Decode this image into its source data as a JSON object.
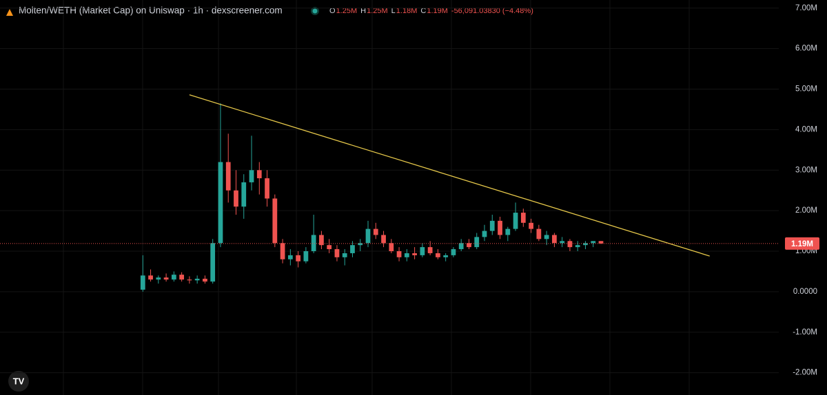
{
  "chart_data": {
    "type": "candlestick",
    "title": "Molten/WETH (Market Cap) on Uniswap · 1h · dexscreener.com",
    "ohlc_legend": [
      {
        "key": "O",
        "value": "1.25M"
      },
      {
        "key": "H",
        "value": "1.25M"
      },
      {
        "key": "L",
        "value": "1.18M"
      },
      {
        "key": "C",
        "value": "1.19M"
      }
    ],
    "change": "-56,091.03830 (−4.48%)",
    "up_color": "#26a69a",
    "down_color": "#ef5350",
    "open": [
      50000,
      400000,
      300000,
      350000,
      300000,
      420000,
      300000,
      280000,
      320000,
      250000,
      1200000,
      3200000,
      2500000,
      2100000,
      2700000,
      3000000,
      2800000,
      2300000,
      1200000,
      800000,
      900000,
      750000,
      1000000,
      1400000,
      1150000,
      1050000,
      850000,
      950000,
      1150000,
      1200000,
      1550000,
      1400000,
      1200000,
      1000000,
      850000,
      950000,
      900000,
      1100000,
      950000,
      850000,
      900000,
      1050000,
      1200000,
      1100000,
      1350000,
      1500000,
      1750000,
      1400000,
      1550000,
      1950000,
      1700000,
      1550000,
      1300000,
      1400000,
      1200000,
      1250000,
      1100000,
      1150000,
      1200000,
      1250000
    ],
    "high": [
      900000,
      550000,
      400000,
      450000,
      500000,
      480000,
      380000,
      400000,
      400000,
      1300000,
      4650000,
      3900000,
      3000000,
      2900000,
      3850000,
      3200000,
      3000000,
      2400000,
      1300000,
      1050000,
      1000000,
      1100000,
      1900000,
      1500000,
      1300000,
      1150000,
      1050000,
      1250000,
      1300000,
      1750000,
      1700000,
      1500000,
      1300000,
      1100000,
      1050000,
      1100000,
      1200000,
      1250000,
      1050000,
      950000,
      1100000,
      1300000,
      1300000,
      1450000,
      1650000,
      1900000,
      1850000,
      1600000,
      2200000,
      2050000,
      1800000,
      1650000,
      1500000,
      1450000,
      1350000,
      1300000,
      1250000,
      1250000,
      1250000,
      1250000
    ],
    "low": [
      0,
      250000,
      200000,
      250000,
      250000,
      250000,
      200000,
      200000,
      200000,
      200000,
      1100000,
      2200000,
      1900000,
      1800000,
      2500000,
      2400000,
      2100000,
      1100000,
      700000,
      650000,
      600000,
      700000,
      950000,
      1050000,
      950000,
      750000,
      650000,
      850000,
      1000000,
      1100000,
      1300000,
      1100000,
      950000,
      750000,
      750000,
      800000,
      850000,
      900000,
      800000,
      750000,
      850000,
      1000000,
      1050000,
      1050000,
      1250000,
      1400000,
      1300000,
      1250000,
      1500000,
      1600000,
      1450000,
      1250000,
      1150000,
      1100000,
      1100000,
      1000000,
      1000000,
      1050000,
      1100000,
      1180000
    ],
    "close": [
      400000,
      300000,
      350000,
      300000,
      420000,
      300000,
      280000,
      320000,
      250000,
      1200000,
      3200000,
      2500000,
      2100000,
      2700000,
      3000000,
      2800000,
      2300000,
      1200000,
      800000,
      900000,
      750000,
      1000000,
      1400000,
      1150000,
      1050000,
      850000,
      950000,
      1150000,
      1200000,
      1550000,
      1400000,
      1200000,
      1000000,
      850000,
      950000,
      900000,
      1100000,
      950000,
      850000,
      900000,
      1050000,
      1200000,
      1100000,
      1350000,
      1500000,
      1750000,
      1400000,
      1550000,
      1950000,
      1700000,
      1550000,
      1300000,
      1400000,
      1200000,
      1250000,
      1100000,
      1150000,
      1200000,
      1250000,
      1190000
    ],
    "xlim": [
      -18.4,
      81.9
    ],
    "ylim": [
      -2550000,
      7200000
    ],
    "yticks": [
      {
        "value": 7000000,
        "label": "7.00M"
      },
      {
        "value": 6000000,
        "label": "6.00M"
      },
      {
        "value": 5000000,
        "label": "5.00M"
      },
      {
        "value": 4000000,
        "label": "4.00M"
      },
      {
        "value": 3000000,
        "label": "3.00M"
      },
      {
        "value": 2000000,
        "label": "2.00M"
      },
      {
        "value": 1000000,
        "label": "1.00M"
      },
      {
        "value": 0,
        "label": "0.0000"
      },
      {
        "value": -1000000,
        "label": "-1.00M"
      },
      {
        "value": -2000000,
        "label": "-2.00M"
      }
    ],
    "last_price": {
      "value": 1190000,
      "label": "1.19M"
    },
    "trendline": {
      "x": [
        6,
        73
      ],
      "y": [
        4860000,
        880000
      ],
      "color": "#e6c84a"
    },
    "grid": true
  }
}
